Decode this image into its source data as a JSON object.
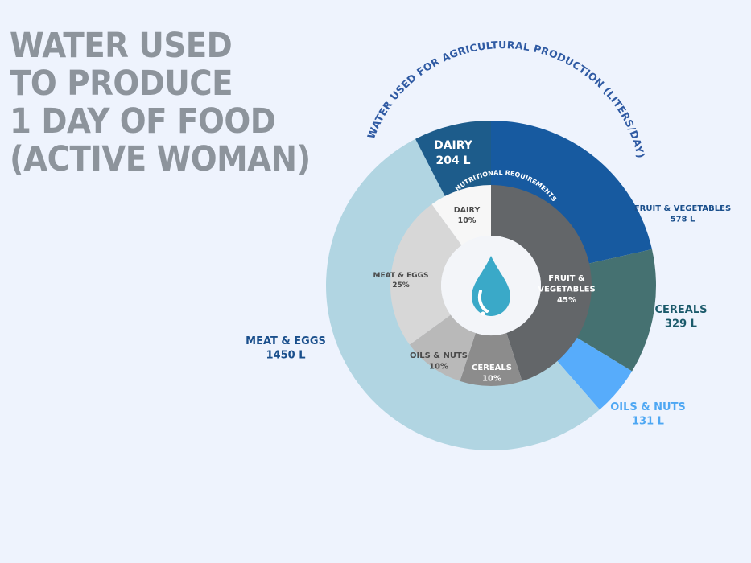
{
  "title_lines": [
    "WATER USED",
    "TO PRODUCE",
    "1 DAY OF FOOD",
    "(ACTIVE WOMAN)"
  ],
  "chart_data": [
    {
      "type": "pie",
      "ring": "outer",
      "title": "WATER USED FOR AGRICULTURAL PRODUCTION (LITERS/DAY)",
      "categories": [
        "FRUIT & VEGETABLES",
        "CEREALS",
        "OILS & NUTS",
        "MEAT & EGGS",
        "DAIRY"
      ],
      "values": [
        578,
        329,
        131,
        1450,
        204
      ],
      "value_labels": [
        "578 L",
        "329 L",
        "131 L",
        "1450 L",
        "204 L"
      ],
      "colors": [
        "#175aa0",
        "#457171",
        "#57acfb",
        "#b1d5e2",
        "#1d5c8b"
      ],
      "label_colors": [
        "#1a4f8c",
        "#1b5a6b",
        "#4ea7f3",
        "#1a4f8c",
        "#ffffff"
      ]
    },
    {
      "type": "pie",
      "ring": "inner",
      "title": "NUTRITIONAL REQUIREMENTS",
      "categories": [
        "FRUIT & VEGETABLES",
        "CEREALS",
        "OILS & NUTS",
        "MEAT & EGGS",
        "DAIRY"
      ],
      "values": [
        45,
        10,
        10,
        25,
        10
      ],
      "value_labels": [
        "45%",
        "10%",
        "10%",
        "25%",
        "10%"
      ],
      "colors": [
        "#636669",
        "#8c8c8c",
        "#b9b9b9",
        "#d7d7d7",
        "#f7f7f7"
      ],
      "label_colors": [
        "#ffffff",
        "#ffffff",
        "#4a4a4a",
        "#4a4a4a",
        "#4a4a4a"
      ]
    }
  ],
  "icon": "water-drop-icon"
}
